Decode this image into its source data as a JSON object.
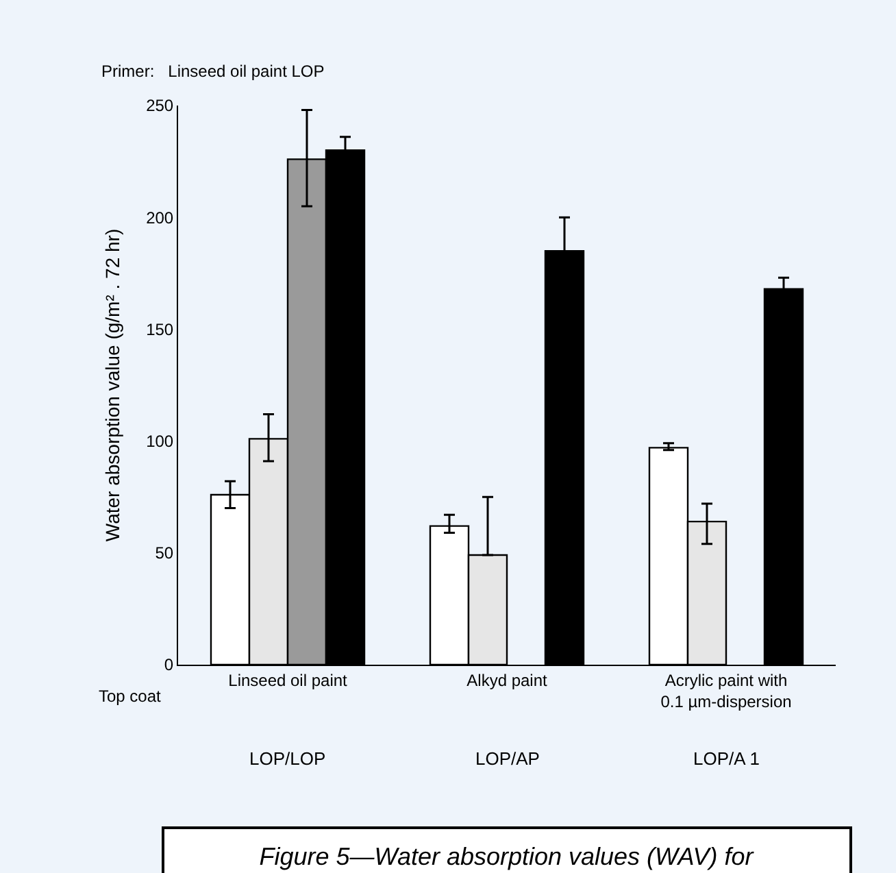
{
  "chart_data": {
    "type": "bar",
    "title": "Figure 5—Water absorption values (WAV) for",
    "subtitle": "Primer:   Linseed oil paint LOP",
    "ylabel": "Water absorption value (g/m² . 72 hr)",
    "categories": [
      "Linseed oil paint",
      "Alkyd paint",
      "Acrylic paint with 0.1 µm-dispersion"
    ],
    "series": [
      {
        "color": "#ffffff",
        "values": [
          76,
          62,
          97
        ],
        "errors": [
          [
            70,
            82
          ],
          [
            59,
            67
          ],
          [
            96,
            99
          ]
        ]
      },
      {
        "color": "#e6e6e6",
        "values": [
          101,
          49,
          64
        ],
        "errors": [
          [
            91,
            112
          ],
          [
            49,
            75
          ],
          [
            54,
            72
          ]
        ]
      },
      {
        "color": "#9a9a9a",
        "values": [
          226,
          null,
          null
        ],
        "errors": [
          [
            205,
            248
          ],
          null,
          null
        ]
      },
      {
        "color": "#000000",
        "values": [
          230,
          185,
          168
        ],
        "errors": [
          6,
          15,
          5
        ]
      }
    ],
    "ylim": [
      0,
      250
    ],
    "yticks": [
      0,
      50,
      100,
      150,
      200,
      250
    ],
    "grid": false,
    "legend": false,
    "annotations": [
      "Top coat",
      "LOP/LOP",
      "LOP/AP",
      "LOP/A 1"
    ]
  }
}
